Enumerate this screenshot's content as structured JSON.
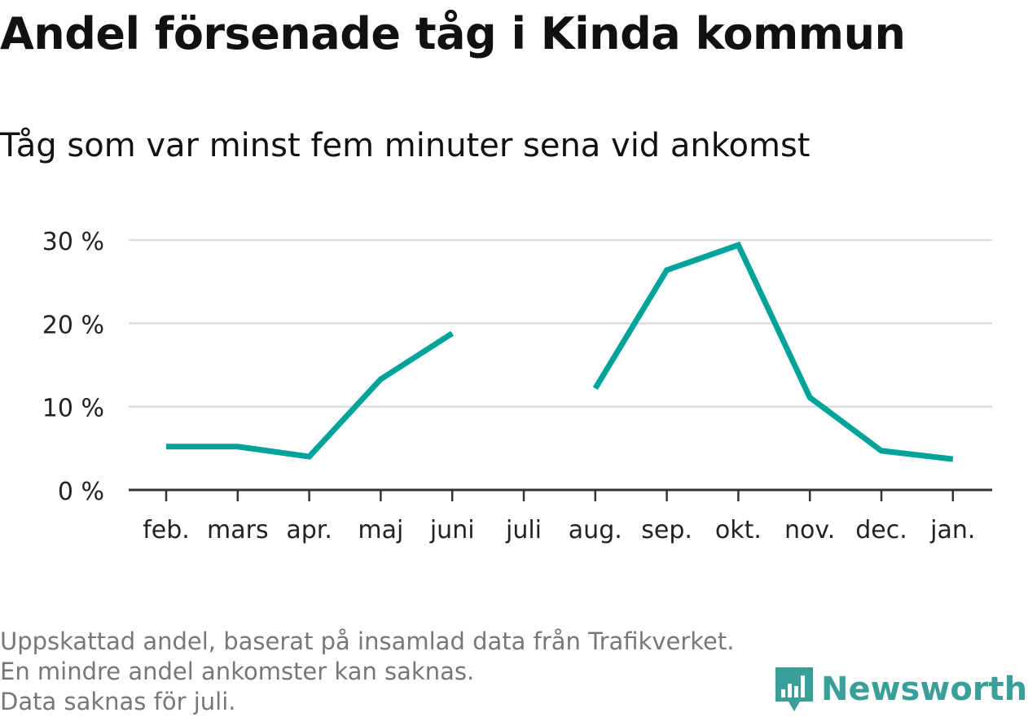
{
  "chart_data": {
    "type": "line",
    "title": "Andel försenade tåg i Kinda kommun",
    "subtitle": "Tåg som var minst fem minuter sena vid ankomst",
    "categories": [
      "feb.",
      "mars",
      "apr.",
      "maj",
      "juni",
      "juli",
      "aug.",
      "sep.",
      "okt.",
      "nov.",
      "dec.",
      "jan."
    ],
    "series": [
      {
        "values": [
          5.2,
          5.2,
          4.0,
          13.3,
          18.8,
          null,
          12.2,
          26.4,
          29.4,
          11.1,
          4.7,
          3.7
        ]
      }
    ],
    "ylim": [
      0,
      30
    ],
    "yticks": [
      0,
      10,
      20,
      30
    ],
    "ytick_labels": [
      "0 %",
      "10 %",
      "20 %",
      "30 %"
    ],
    "xlabel": "",
    "ylabel": "",
    "grid": true,
    "line_color": "#00a39a"
  },
  "footer": {
    "note_line1": "Uppskattad andel, baserat på insamlad data från Trafikverket. En mindre andel ankomster kan saknas.",
    "note_line2": "Data saknas för juli."
  },
  "brand": {
    "name": "Newsworthy",
    "icon": "bar-chart-speech-bubble-icon",
    "color": "#3a9f98"
  }
}
